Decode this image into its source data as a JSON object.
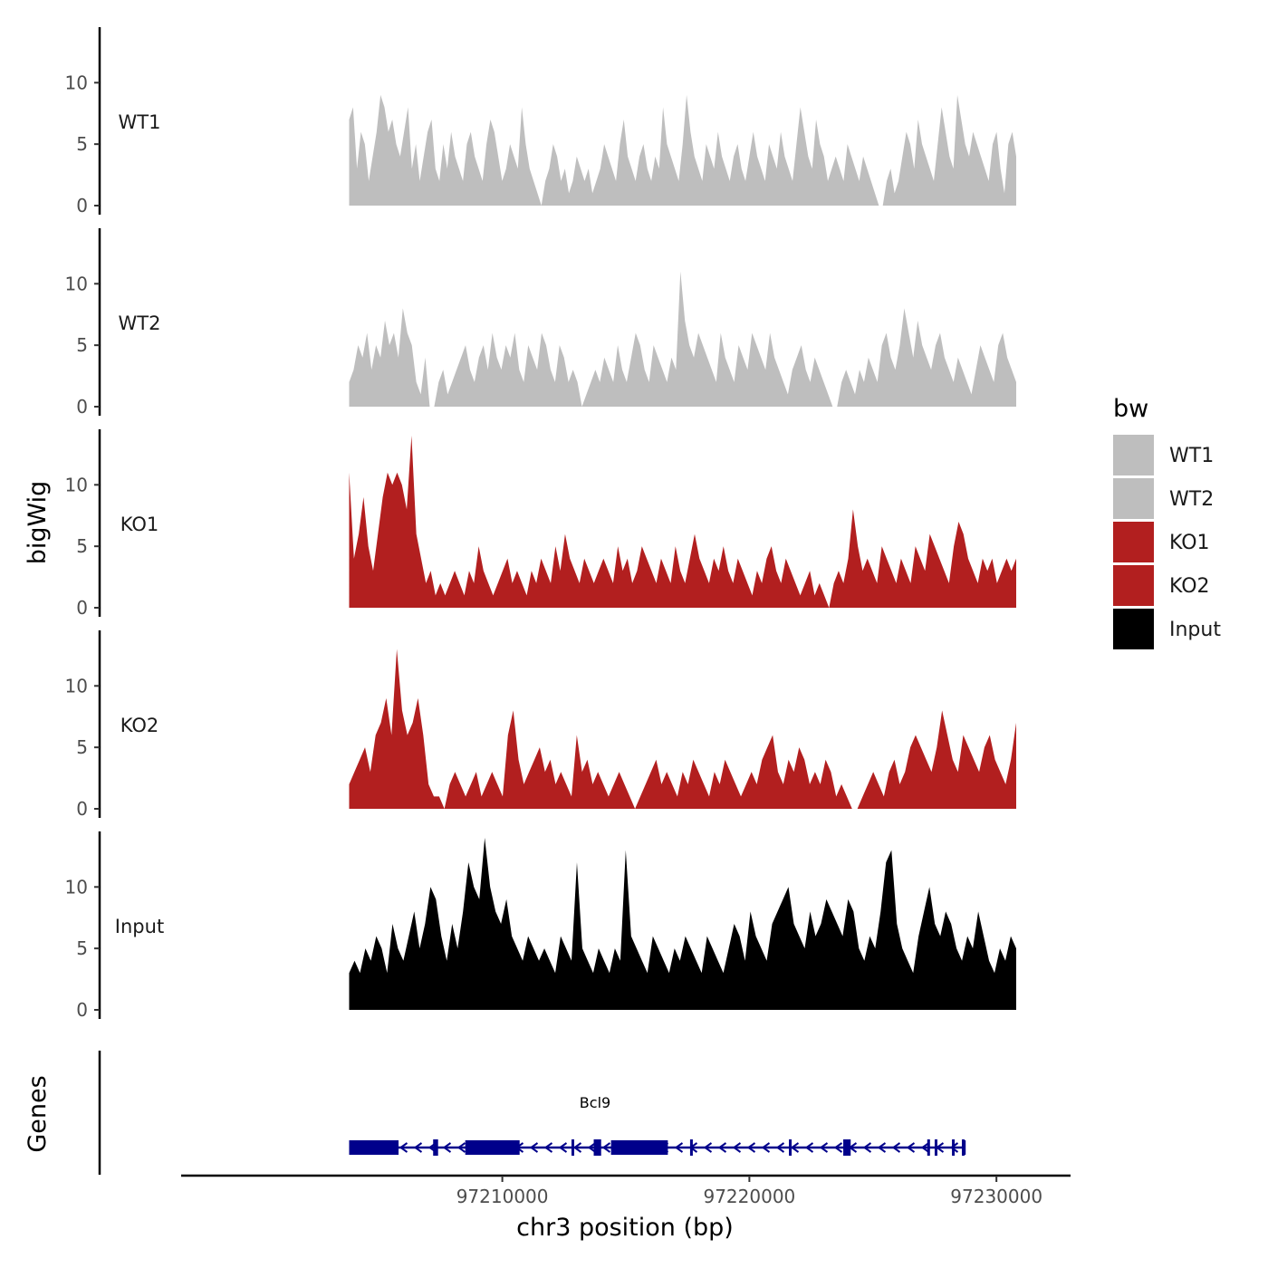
{
  "chart_data": {
    "type": "area",
    "xlabel": "chr3 position (bp)",
    "ylabel": "bigWig",
    "genes_label": "Genes",
    "xlim": [
      97197000,
      97233000
    ],
    "x_ticks": [
      {
        "value": 97210000,
        "label": "97210000"
      },
      {
        "value": 97220000,
        "label": "97220000"
      },
      {
        "value": 97230000,
        "label": "97230000"
      }
    ],
    "ylim": [
      0,
      14
    ],
    "y_ticks": [
      {
        "value": 0,
        "label": "0"
      },
      {
        "value": 5,
        "label": "5"
      },
      {
        "value": 10,
        "label": "10"
      }
    ],
    "region": [
      97203800,
      97230800
    ],
    "legend": {
      "title": "bw",
      "items": [
        {
          "label": "WT1",
          "color": "#bebebe"
        },
        {
          "label": "WT2",
          "color": "#bebebe"
        },
        {
          "label": "KO1",
          "color": "#b21f1f"
        },
        {
          "label": "KO2",
          "color": "#b21f1f"
        },
        {
          "label": "Input",
          "color": "#000000"
        }
      ]
    },
    "series": [
      {
        "name": "WT1",
        "color": "#bebebe",
        "values": [
          7,
          8,
          3,
          6,
          5,
          2,
          4,
          6,
          9,
          8,
          6,
          7,
          5,
          4,
          6,
          8,
          3,
          5,
          2,
          4,
          6,
          7,
          3,
          2,
          5,
          3,
          6,
          4,
          3,
          2,
          5,
          6,
          4,
          3,
          2,
          5,
          7,
          6,
          4,
          2,
          3,
          5,
          4,
          3,
          8,
          5,
          3,
          2,
          1,
          0,
          2,
          3,
          5,
          4,
          2,
          3,
          1,
          2,
          4,
          3,
          2,
          3,
          1,
          2,
          3,
          5,
          4,
          3,
          2,
          5,
          7,
          4,
          3,
          2,
          4,
          5,
          3,
          2,
          4,
          3,
          8,
          5,
          4,
          3,
          2,
          5,
          9,
          6,
          4,
          3,
          2,
          5,
          4,
          3,
          6,
          4,
          3,
          2,
          4,
          5,
          3,
          2,
          4,
          6,
          4,
          3,
          2,
          5,
          4,
          3,
          6,
          4,
          3,
          2,
          5,
          8,
          6,
          4,
          3,
          7,
          5,
          4,
          2,
          3,
          4,
          3,
          2,
          5,
          4,
          3,
          2,
          4,
          3,
          2,
          1,
          0,
          0,
          2,
          3,
          1,
          2,
          4,
          6,
          5,
          3,
          7,
          5,
          4,
          3,
          2,
          5,
          8,
          6,
          4,
          3,
          9,
          7,
          5,
          4,
          6,
          5,
          4,
          3,
          2,
          5,
          6,
          3,
          1,
          5,
          6,
          4
        ]
      },
      {
        "name": "WT2",
        "color": "#bebebe",
        "values": [
          2,
          3,
          5,
          4,
          6,
          3,
          5,
          4,
          7,
          5,
          6,
          4,
          8,
          6,
          5,
          2,
          1,
          4,
          0,
          0,
          2,
          3,
          1,
          2,
          3,
          4,
          5,
          3,
          2,
          4,
          5,
          3,
          6,
          4,
          3,
          5,
          4,
          6,
          3,
          2,
          5,
          4,
          3,
          6,
          5,
          3,
          2,
          5,
          4,
          2,
          3,
          2,
          0,
          1,
          2,
          3,
          2,
          4,
          3,
          2,
          5,
          3,
          2,
          4,
          6,
          5,
          3,
          2,
          5,
          4,
          3,
          2,
          4,
          3,
          11,
          7,
          5,
          4,
          6,
          5,
          4,
          3,
          2,
          6,
          4,
          3,
          2,
          5,
          4,
          3,
          6,
          5,
          4,
          3,
          6,
          4,
          3,
          2,
          1,
          3,
          4,
          5,
          3,
          2,
          4,
          3,
          2,
          1,
          0,
          0,
          2,
          3,
          2,
          1,
          3,
          2,
          4,
          3,
          2,
          5,
          6,
          4,
          3,
          5,
          8,
          6,
          4,
          7,
          5,
          4,
          3,
          5,
          6,
          4,
          3,
          2,
          4,
          3,
          2,
          1,
          3,
          5,
          4,
          3,
          2,
          5,
          6,
          4,
          3,
          2
        ]
      },
      {
        "name": "KO1",
        "color": "#b21f1f",
        "values": [
          11,
          4,
          6,
          9,
          5,
          3,
          6,
          9,
          11,
          10,
          11,
          10,
          8,
          14,
          6,
          4,
          2,
          3,
          1,
          2,
          1,
          2,
          3,
          2,
          1,
          3,
          2,
          5,
          3,
          2,
          1,
          2,
          3,
          4,
          2,
          3,
          2,
          1,
          3,
          2,
          4,
          3,
          2,
          5,
          3,
          6,
          4,
          3,
          2,
          4,
          3,
          2,
          3,
          4,
          3,
          2,
          5,
          3,
          4,
          2,
          3,
          5,
          4,
          3,
          2,
          4,
          3,
          2,
          5,
          3,
          2,
          4,
          6,
          4,
          3,
          2,
          4,
          3,
          5,
          3,
          2,
          4,
          3,
          2,
          1,
          3,
          2,
          4,
          5,
          3,
          2,
          4,
          3,
          2,
          1,
          2,
          3,
          1,
          2,
          1,
          0,
          2,
          3,
          2,
          4,
          8,
          5,
          3,
          4,
          3,
          2,
          5,
          4,
          3,
          2,
          4,
          3,
          2,
          5,
          4,
          3,
          6,
          5,
          4,
          3,
          2,
          5,
          7,
          6,
          4,
          3,
          2,
          4,
          3,
          4,
          2,
          3,
          4,
          3,
          4
        ]
      },
      {
        "name": "KO2",
        "color": "#b21f1f",
        "values": [
          2,
          3,
          4,
          5,
          3,
          6,
          7,
          9,
          6,
          13,
          8,
          6,
          7,
          9,
          6,
          2,
          1,
          1,
          0,
          2,
          3,
          2,
          1,
          2,
          3,
          1,
          2,
          3,
          2,
          1,
          6,
          8,
          4,
          2,
          3,
          4,
          5,
          3,
          4,
          2,
          3,
          2,
          1,
          6,
          3,
          4,
          2,
          3,
          2,
          1,
          2,
          3,
          2,
          1,
          0,
          1,
          2,
          3,
          4,
          2,
          3,
          2,
          1,
          3,
          2,
          4,
          3,
          2,
          1,
          3,
          2,
          4,
          3,
          2,
          1,
          2,
          3,
          2,
          4,
          5,
          6,
          3,
          2,
          4,
          3,
          5,
          4,
          2,
          3,
          2,
          4,
          3,
          1,
          2,
          1,
          0,
          0,
          1,
          2,
          3,
          2,
          1,
          3,
          4,
          2,
          3,
          5,
          6,
          5,
          4,
          3,
          5,
          8,
          6,
          4,
          3,
          6,
          5,
          4,
          3,
          5,
          6,
          4,
          3,
          2,
          4,
          7
        ]
      },
      {
        "name": "Input",
        "color": "#000000",
        "values": [
          3,
          4,
          3,
          5,
          4,
          6,
          5,
          3,
          7,
          5,
          4,
          6,
          8,
          5,
          7,
          10,
          9,
          6,
          4,
          7,
          5,
          8,
          12,
          10,
          9,
          14,
          10,
          8,
          7,
          9,
          6,
          5,
          4,
          6,
          5,
          4,
          5,
          4,
          3,
          6,
          5,
          4,
          12,
          5,
          4,
          3,
          5,
          4,
          3,
          5,
          4,
          13,
          6,
          5,
          4,
          3,
          6,
          5,
          4,
          3,
          5,
          4,
          6,
          5,
          4,
          3,
          6,
          5,
          4,
          3,
          5,
          7,
          6,
          4,
          8,
          6,
          5,
          4,
          7,
          8,
          9,
          10,
          7,
          6,
          5,
          8,
          6,
          7,
          9,
          8,
          7,
          6,
          9,
          8,
          5,
          4,
          6,
          5,
          8,
          12,
          13,
          7,
          5,
          4,
          3,
          6,
          8,
          10,
          7,
          6,
          8,
          7,
          5,
          4,
          6,
          5,
          8,
          6,
          4,
          3,
          5,
          4,
          6,
          5
        ]
      }
    ],
    "gene_track": {
      "name": "Bcl9",
      "color": "#00008b",
      "start": 97203800,
      "end": 97228700,
      "exons": [
        {
          "start": 97203800,
          "end": 97205800
        },
        {
          "start": 97207200,
          "end": 97207400
        },
        {
          "start": 97208500,
          "end": 97210700
        },
        {
          "start": 97212800,
          "end": 97212900
        },
        {
          "start": 97213700,
          "end": 97214000
        },
        {
          "start": 97214400,
          "end": 97216700
        },
        {
          "start": 97217600,
          "end": 97217700
        },
        {
          "start": 97221600,
          "end": 97221700
        },
        {
          "start": 97223800,
          "end": 97224100
        },
        {
          "start": 97227200,
          "end": 97227300
        },
        {
          "start": 97227500,
          "end": 97227600
        },
        {
          "start": 97228200,
          "end": 97228300
        },
        {
          "start": 97228600,
          "end": 97228700
        }
      ]
    }
  }
}
